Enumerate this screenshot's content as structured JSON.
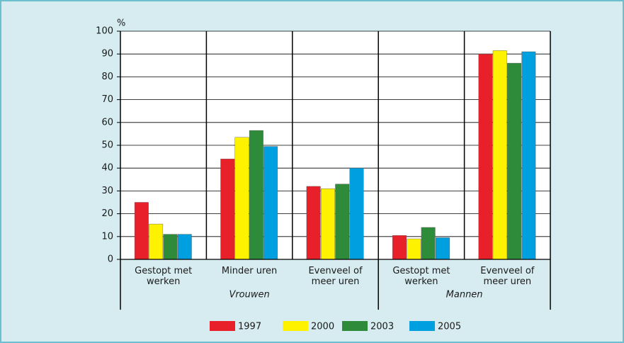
{
  "chart_data": {
    "type": "bar",
    "y_unit": "%",
    "categories": [
      "Gestopt met\nwerken",
      "Minder uren",
      "Evenveel of\nmeer uren",
      "Gestopt met\nwerken",
      "Evenveel of\nmeer uren"
    ],
    "groups": [
      {
        "name": "Vrouwen",
        "count": 3
      },
      {
        "name": "Mannen",
        "count": 2
      }
    ],
    "series": [
      {
        "name": "1997",
        "color": "#e8202a",
        "values": [
          25,
          44,
          32,
          10.5,
          90
        ]
      },
      {
        "name": "2000",
        "color": "#fff200",
        "values": [
          15.5,
          53.5,
          31,
          9,
          91.5
        ]
      },
      {
        "name": "2003",
        "color": "#2e8b3a",
        "values": [
          11,
          56.5,
          33,
          14,
          86
        ]
      },
      {
        "name": "2005",
        "color": "#00a0e0",
        "values": [
          11,
          49.5,
          40,
          9.5,
          91
        ]
      }
    ],
    "ylim": [
      0,
      100
    ],
    "yticks": [
      0,
      10,
      20,
      30,
      40,
      50,
      60,
      70,
      80,
      90,
      100
    ],
    "grid": true,
    "legend": "bottom"
  }
}
